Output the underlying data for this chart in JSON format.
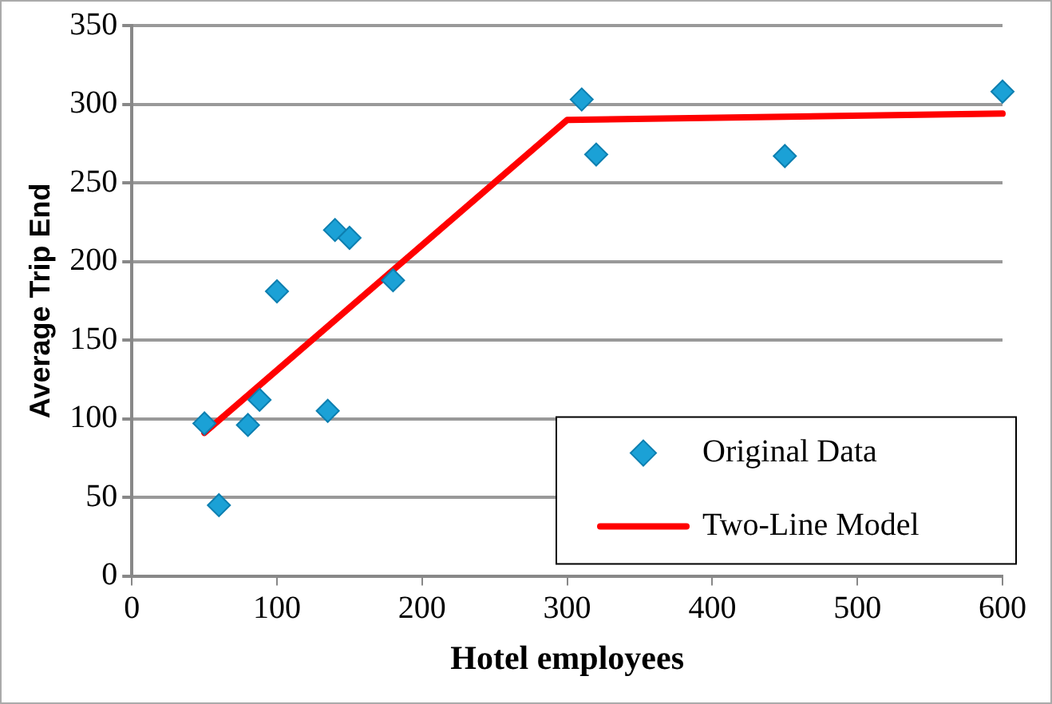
{
  "chart_data": {
    "type": "scatter",
    "xlabel": "Hotel employees",
    "ylabel": "Average Trip End",
    "series": [
      {
        "name": "Original Data",
        "color": "#1ba1d6",
        "marker": "diamond",
        "x": [
          50,
          60,
          80,
          88,
          100,
          135,
          140,
          150,
          180,
          310,
          320,
          450,
          600
        ],
        "values": [
          97,
          45,
          96,
          112,
          181,
          105,
          220,
          215,
          188,
          303,
          268,
          267,
          308
        ]
      },
      {
        "name": "Two-Line Model",
        "type": "line",
        "color": "#ff0000",
        "marker": "none",
        "x": [
          50,
          300,
          600
        ],
        "values": [
          91,
          290,
          294
        ]
      }
    ],
    "xlim": [
      0,
      600
    ],
    "xticks": [
      0,
      100,
      200,
      300,
      400,
      500,
      600
    ],
    "ylim": [
      0,
      350
    ],
    "yticks": [
      0,
      50,
      100,
      150,
      200,
      250,
      300,
      350
    ],
    "grid": "y",
    "legend": "bottom right"
  }
}
